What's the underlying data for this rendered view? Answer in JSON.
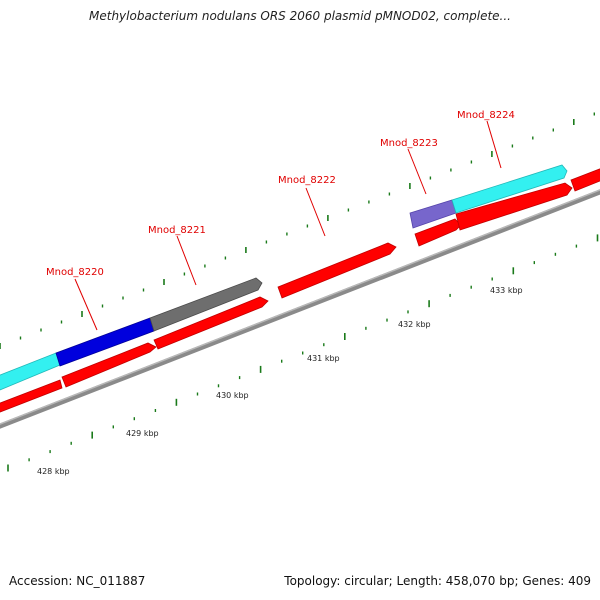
{
  "title": "Methylobacterium nodulans ORS 2060 plasmid pMNOD02, complete...",
  "footer": {
    "accession": "Accession: NC_011887",
    "summary": "Topology: circular; Length: 458,070 bp; Genes: 409"
  },
  "colors": {
    "backbone": "#8a8a8a",
    "cds": "#ff0000",
    "cds_dark": "#c00000",
    "tick": "#1a7a1a",
    "label": "#e00000",
    "cyan": "#33f0f0",
    "blue": "#0000dd",
    "gray": "#6e6e6e",
    "purple": "#7766cc"
  },
  "genes": [
    {
      "id": "gl0",
      "name": "Mnod_8220"
    },
    {
      "id": "gl1",
      "name": "Mnod_8221"
    },
    {
      "id": "gl2",
      "name": "Mnod_8222"
    },
    {
      "id": "gl3",
      "name": "Mnod_8223"
    },
    {
      "id": "gl4",
      "name": "Mnod_8224"
    }
  ],
  "scale_labels": [
    "428 kbp",
    "429 kbp",
    "430 kbp",
    "431 kbp",
    "432 kbp",
    "433 kbp"
  ]
}
